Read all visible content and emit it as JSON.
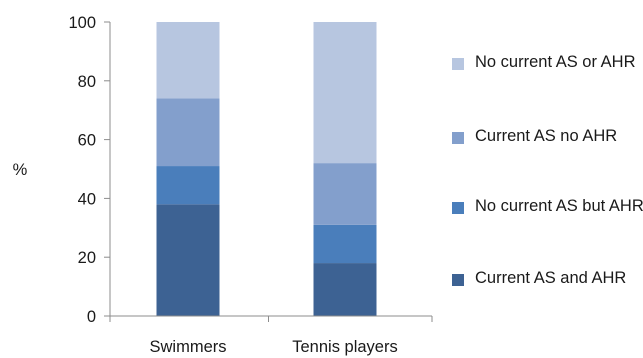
{
  "chart_data": {
    "type": "bar",
    "stacked": true,
    "categories": [
      "Swimmers",
      "Tennis players"
    ],
    "ylabel": "%",
    "ylim": [
      0,
      100
    ],
    "yticks": [
      0,
      20,
      40,
      60,
      80,
      100
    ],
    "grid": false,
    "legend_position": "right",
    "series": [
      {
        "name": "Current AS and AHR",
        "values": [
          38,
          18
        ],
        "color": "#3d6293"
      },
      {
        "name": "No current AS but AHR",
        "values": [
          13,
          13
        ],
        "color": "#4a7ebb"
      },
      {
        "name": "Current AS no AHR",
        "values": [
          23,
          21
        ],
        "color": "#839fcc"
      },
      {
        "name": "No current AS or AHR",
        "values": [
          26,
          48
        ],
        "color": "#b7c6e0"
      }
    ]
  },
  "legend": {
    "items": [
      {
        "label": "No current AS or AHR",
        "color": "#b7c6e0"
      },
      {
        "label": "Current AS no AHR",
        "color": "#839fcc"
      },
      {
        "label": "No current AS but AHR",
        "color": "#4a7ebb"
      },
      {
        "label": "Current AS and AHR",
        "color": "#3d6293"
      }
    ]
  }
}
